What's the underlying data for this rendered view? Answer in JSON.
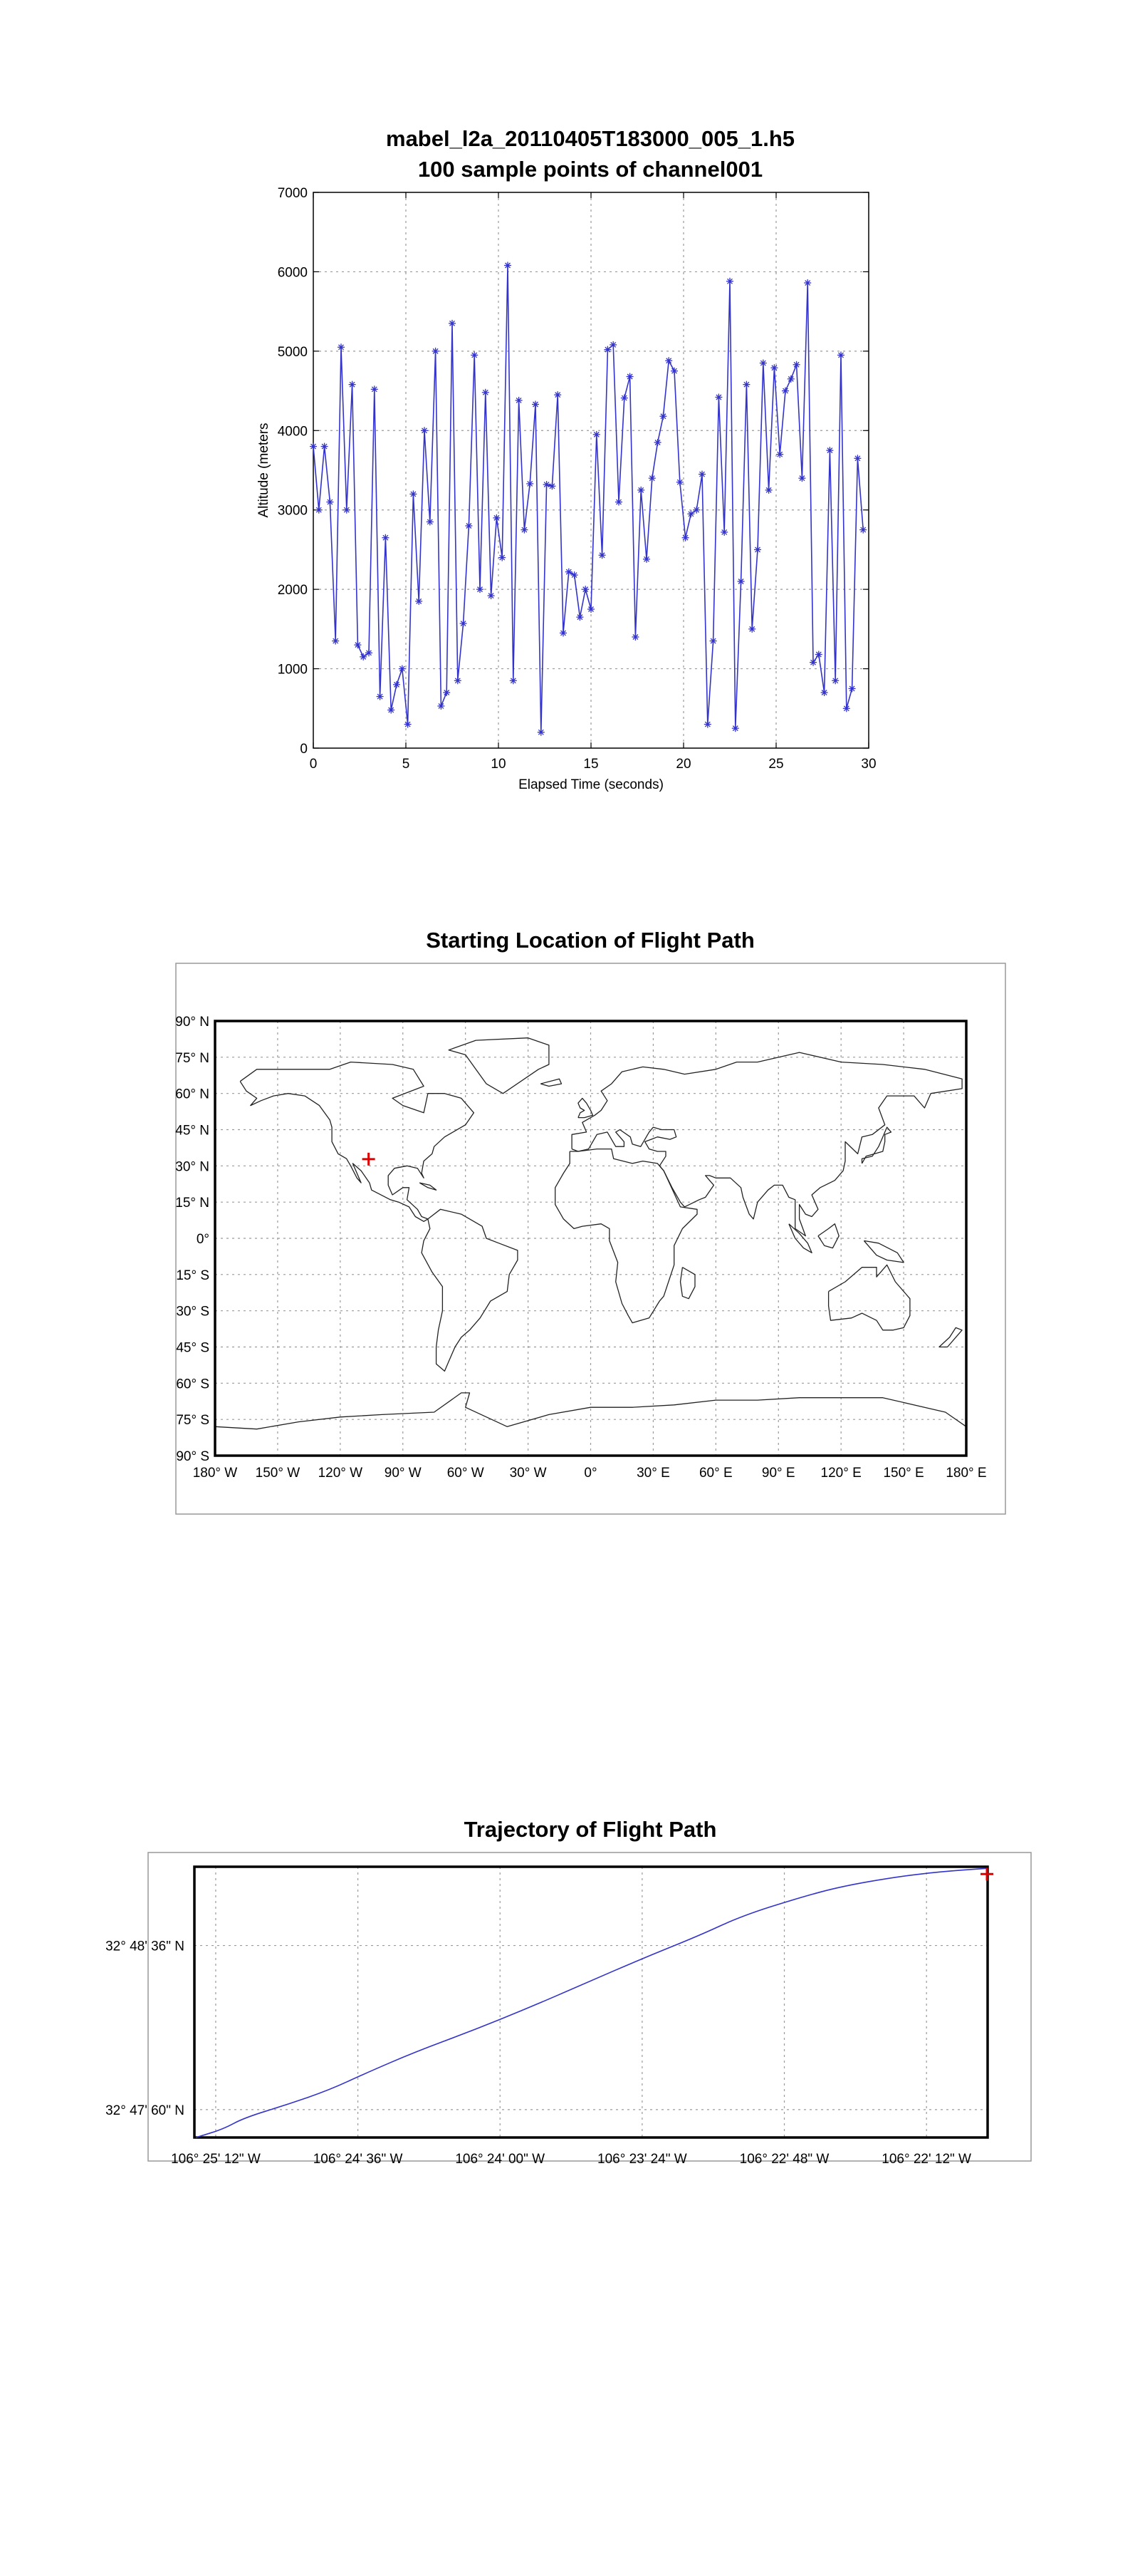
{
  "chart_data": [
    {
      "type": "line",
      "title": "mabel_l2a_20110405T183000_005_1.h5",
      "subtitle": "100 sample points of channel001",
      "xlabel": "Elapsed Time (seconds)",
      "ylabel": "Altitude (meters",
      "xlim": [
        0,
        30
      ],
      "ylim": [
        0,
        7000
      ],
      "x_ticks": [
        "0",
        "5",
        "10",
        "15",
        "20",
        "25",
        "30"
      ],
      "y_ticks": [
        "0",
        "1000",
        "2000",
        "3000",
        "4000",
        "5000",
        "6000",
        "7000"
      ],
      "grid": true,
      "marker": "asterisk",
      "line_color": "#3333cc",
      "series": [
        {
          "x_step": 0.3,
          "values": [
            3800,
            3000,
            3800,
            3100,
            1350,
            5050,
            3000,
            4580,
            1300,
            1150,
            1200,
            4520,
            650,
            2650,
            480,
            800,
            1000,
            300,
            3200,
            1850,
            4000,
            2850,
            5000,
            530,
            700,
            5350,
            850,
            1570,
            2800,
            4950,
            2000,
            4480,
            1920,
            2900,
            2400,
            6080,
            850,
            4380,
            2750,
            3330,
            4330,
            200,
            3320,
            3300,
            4450,
            1450,
            2220,
            2180,
            1650,
            2000,
            1750,
            3950,
            2430,
            5020,
            5080,
            3100,
            4410,
            4680,
            1400,
            3250,
            2380,
            3400,
            3850,
            4180,
            4880,
            4750,
            3350,
            2650,
            2950,
            3000,
            3450,
            300,
            1350,
            4420,
            2720,
            5880,
            250,
            2100,
            4580,
            1500,
            2500,
            4850,
            3250,
            4790,
            3700,
            4500,
            4650,
            4830,
            3400,
            5860,
            1080,
            1180,
            700,
            3750,
            850,
            4950,
            500,
            750,
            3650,
            2750
          ]
        }
      ]
    },
    {
      "type": "scatter",
      "title": "Starting Location of Flight Path",
      "xlim": [
        -180,
        180
      ],
      "ylim": [
        -90,
        90
      ],
      "x_ticks": [
        "180° W",
        "150° W",
        "120° W",
        "90° W",
        "60° W",
        "30° W",
        "0°",
        "30° E",
        "60° E",
        "90° E",
        "120° E",
        "150° E",
        "180° E"
      ],
      "y_ticks": [
        "90° N",
        "75° N",
        "60° N",
        "45° N",
        "30° N",
        "15° N",
        "0°",
        "15° S",
        "30° S",
        "45° S",
        "60° S",
        "75° S",
        "90° S"
      ],
      "grid": true,
      "marker_color": "#dd0000",
      "points": [
        {
          "lon": -106.42,
          "lat": 32.8
        }
      ]
    },
    {
      "type": "line",
      "title": "Trajectory of Flight Path",
      "x_ticks": [
        "106° 25' 12\" W",
        "106° 24' 36\" W",
        "106° 24' 00\" W",
        "106° 23' 24\" W",
        "106° 22' 48\" W",
        "106° 22' 12\" W"
      ],
      "y_ticks": [
        "32° 48' 36\" N",
        "32° 47' 60\" N"
      ],
      "x_tick_values": [
        -106.42,
        -106.41,
        -106.4,
        -106.39,
        -106.38,
        -106.37
      ],
      "y_tick_values": [
        32.81,
        32.8
      ],
      "xlim": [
        -106.4215,
        -106.3657
      ],
      "ylim": [
        32.7983,
        32.8148
      ],
      "grid": true,
      "line_color": "#3333cc",
      "end_marker_color": "#dd0000",
      "series": [
        {
          "lon": [
            -106.4214,
            -106.4195,
            -106.418,
            -106.415,
            -106.412,
            -106.4095,
            -106.406,
            -106.402,
            -106.398,
            -106.394,
            -106.39,
            -106.386,
            -106.383,
            -106.379,
            -106.376,
            -106.372,
            -106.369,
            -106.3658
          ],
          "lat": [
            32.7983,
            32.7988,
            32.7995,
            32.8003,
            32.8012,
            32.8022,
            32.8035,
            32.8048,
            32.8062,
            32.8077,
            32.8092,
            32.8106,
            32.8118,
            32.8129,
            32.8136,
            32.8142,
            32.8145,
            32.8147
          ]
        }
      ]
    }
  ]
}
